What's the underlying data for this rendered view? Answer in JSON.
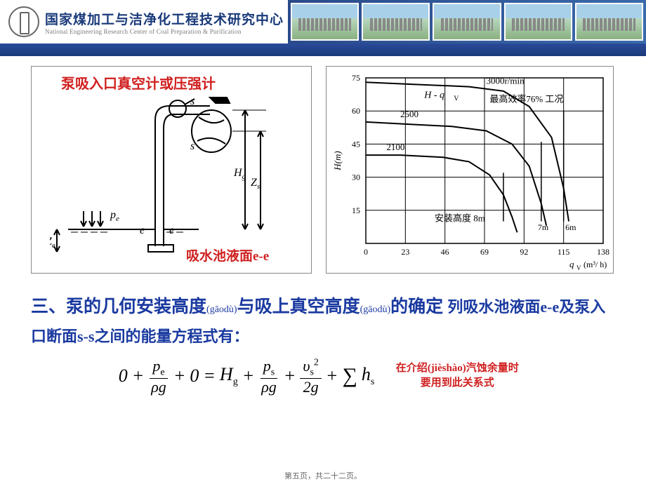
{
  "header": {
    "org_cn": "国家煤加工与洁净化工程技术研究中心",
    "org_en": "National Engineering Research Center of Coal Preparation & Purification"
  },
  "fig_left": {
    "annotation_top": "泵吸入口真空计或压强计",
    "annotation_bottom": "吸水池液面e-e",
    "labels": {
      "s1": "s",
      "s2": "s",
      "e1": "e",
      "e2": "e",
      "Hg": "H",
      "Hg_sub": "g",
      "Zs": "Z",
      "Zs_sub": "s",
      "Ze": "Z",
      "Ze_sub": "e",
      "pe": "p",
      "pe_sub": "e"
    },
    "stroke_color": "#000000",
    "annotation_color": "#d02020",
    "line_width": 2
  },
  "fig_right": {
    "type": "line",
    "title_curve": "H - q",
    "title_curve_sub": "V",
    "efficiency_label": "最高效率76% 工况",
    "install_height_label": "安装高度 8m",
    "xlabel": "q",
    "xlabel_sub": "V",
    "xlabel_unit": "(m³/ h)",
    "ylabel": "H",
    "ylabel_unit": "(m)",
    "xlim": [
      0,
      138
    ],
    "ylim": [
      0,
      75
    ],
    "xticks": [
      0,
      23,
      46,
      69,
      92,
      115,
      138
    ],
    "yticks": [
      15,
      30,
      45,
      60,
      75
    ],
    "curves": [
      {
        "label": "3000r/min",
        "points": [
          [
            0,
            73
          ],
          [
            30,
            72
          ],
          [
            60,
            71
          ],
          [
            80,
            69
          ],
          [
            95,
            62
          ],
          [
            108,
            48
          ],
          [
            115,
            25
          ],
          [
            118,
            10
          ]
        ]
      },
      {
        "label": "2500",
        "points": [
          [
            0,
            55
          ],
          [
            25,
            54
          ],
          [
            50,
            53
          ],
          [
            70,
            51
          ],
          [
            85,
            45
          ],
          [
            95,
            35
          ],
          [
            102,
            18
          ],
          [
            105,
            8
          ]
        ]
      },
      {
        "label": "2100",
        "points": [
          [
            0,
            40
          ],
          [
            20,
            40
          ],
          [
            45,
            39
          ],
          [
            60,
            37
          ],
          [
            72,
            31
          ],
          [
            80,
            22
          ],
          [
            85,
            12
          ],
          [
            88,
            5
          ]
        ]
      }
    ],
    "install_points": [
      {
        "label": "8m",
        "x": 80
      },
      {
        "label": "7m",
        "x": 102
      },
      {
        "label": "6m",
        "x": 115
      }
    ],
    "stroke_color": "#000000",
    "grid_color": "#000000",
    "font_size": 12,
    "background_color": "#ffffff"
  },
  "section": {
    "prefix": "三、",
    "title_part1": "泵的几何安装高度",
    "pinyin1": "(gāodù)",
    "title_part2": "与吸上真空高度",
    "pinyin2": "(gāodù)",
    "title_part3": "的确定",
    "subline": "列吸水池液面e-e及泵入口断面s-s之间的能量方程式有："
  },
  "equation": {
    "lhs_0a": "0",
    "plus": "+",
    "eq": "=",
    "pe_num": "p",
    "pe_sub": "e",
    "rho_g": "ρg",
    "lhs_0b": "0",
    "Hg": "H",
    "Hg_sub": "g",
    "ps_num": "p",
    "ps_sub": "s",
    "vs_num": "υ",
    "vs_sub": "s",
    "vs_sup": "2",
    "two_g": "2g",
    "sigma": "∑",
    "hs": "h",
    "hs_sub": "s",
    "note_line1": "在介绍(jièshào)汽蚀余量时",
    "note_line2": "要用到此关系式"
  },
  "footer": "第五页，共二十二页。"
}
